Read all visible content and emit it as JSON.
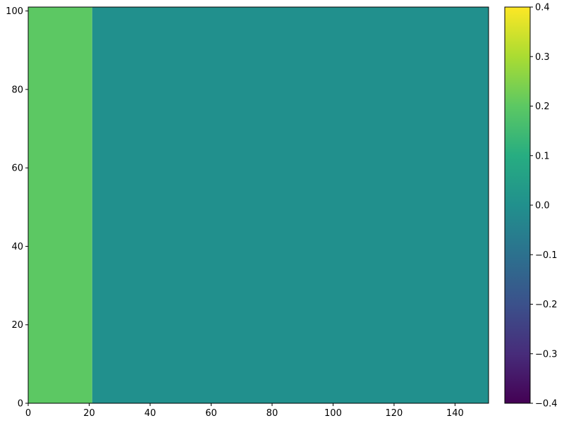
{
  "chart_data": {
    "type": "heatmap",
    "title": "",
    "xlabel": "",
    "ylabel": "",
    "xlim": [
      0,
      151
    ],
    "ylim": [
      0,
      101
    ],
    "x_ticks": [
      0,
      20,
      40,
      60,
      80,
      100,
      120,
      140
    ],
    "y_ticks": [
      0,
      20,
      40,
      60,
      80,
      100
    ],
    "colormap": "viridis",
    "color_range": [
      -0.4,
      0.4
    ],
    "colorbar_ticks": [
      "−0.4",
      "−0.3",
      "−0.2",
      "−0.1",
      "0.0",
      "0.1",
      "0.2",
      "0.3",
      "0.4"
    ],
    "regions": [
      {
        "x_range": [
          0,
          21
        ],
        "y_range": [
          0,
          101
        ],
        "value": 0.2
      },
      {
        "x_range": [
          21,
          151
        ],
        "y_range": [
          0,
          101
        ],
        "value": 0.0
      }
    ]
  }
}
